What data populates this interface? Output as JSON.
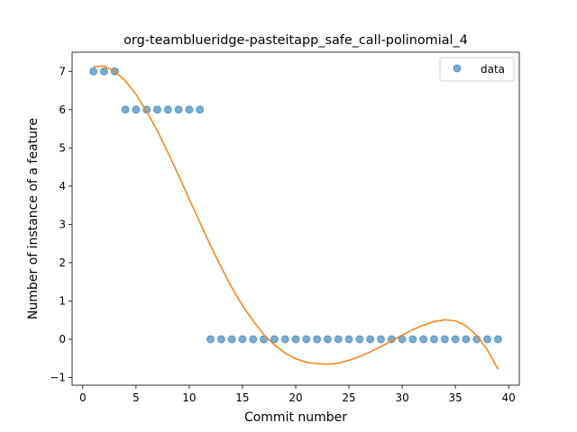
{
  "chart_data": {
    "type": "scatter",
    "title": "org-teamblueridge-pasteitapp_safe_call-polinomial_4",
    "xlabel": "Commit number",
    "ylabel": "Number of instance of a feature",
    "xlim": [
      -1,
      41
    ],
    "ylim": [
      -1.2,
      7.5
    ],
    "xticks": [
      0,
      5,
      10,
      15,
      20,
      25,
      30,
      35,
      40
    ],
    "yticks": [
      -1,
      0,
      1,
      2,
      3,
      4,
      5,
      6,
      7
    ],
    "grid": false,
    "legend": {
      "position": "top-right",
      "entries": [
        "data"
      ]
    },
    "colors": {
      "data": "#1f77b4",
      "fit": "#ff7f0e"
    },
    "series": [
      {
        "name": "data",
        "kind": "scatter",
        "x": [
          1,
          2,
          3,
          4,
          5,
          6,
          7,
          8,
          9,
          10,
          11,
          12,
          13,
          14,
          15,
          16,
          17,
          18,
          19,
          20,
          21,
          22,
          23,
          24,
          25,
          26,
          27,
          28,
          29,
          30,
          31,
          32,
          33,
          34,
          35,
          36,
          37,
          38,
          39
        ],
        "y": [
          7,
          7,
          7,
          6,
          6,
          6,
          6,
          6,
          6,
          6,
          6,
          0,
          0,
          0,
          0,
          0,
          0,
          0,
          0,
          0,
          0,
          0,
          0,
          0,
          0,
          0,
          0,
          0,
          0,
          0,
          0,
          0,
          0,
          0,
          0,
          0,
          0,
          0,
          0
        ]
      },
      {
        "kind": "line",
        "x": [
          1,
          2,
          3,
          4,
          5,
          6,
          7,
          8,
          9,
          10,
          11,
          12,
          13,
          14,
          15,
          16,
          17,
          18,
          19,
          20,
          21,
          22,
          23,
          24,
          25,
          26,
          27,
          28,
          29,
          30,
          31,
          32,
          33,
          34,
          35,
          36,
          37,
          38,
          39
        ],
        "y": [
          7.12,
          7.14,
          7.0,
          6.75,
          6.4,
          5.95,
          5.45,
          4.88,
          4.28,
          3.66,
          3.05,
          2.45,
          1.88,
          1.35,
          0.88,
          0.48,
          0.12,
          -0.15,
          -0.36,
          -0.51,
          -0.6,
          -0.64,
          -0.65,
          -0.62,
          -0.55,
          -0.45,
          -0.33,
          -0.19,
          -0.04,
          0.11,
          0.25,
          0.37,
          0.46,
          0.51,
          0.48,
          0.35,
          0.1,
          -0.28,
          -0.78
        ]
      }
    ]
  }
}
